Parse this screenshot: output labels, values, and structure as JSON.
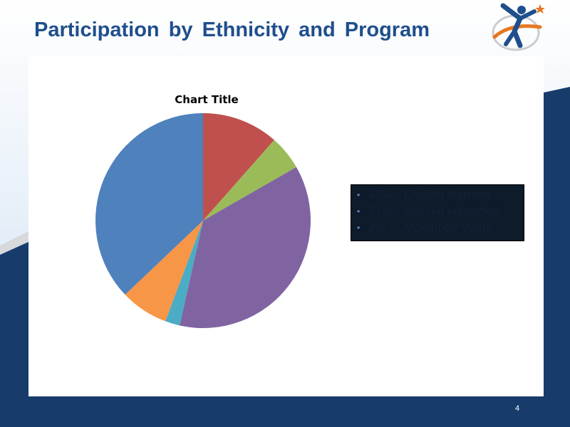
{
  "slide": {
    "title": "Participation by Ethnicity and Program",
    "page_number": "4"
  },
  "logo": {
    "icon": "runner-globe-star-icon"
  },
  "colors": {
    "title": "#1f4e8c",
    "navy_band": "#173c6b",
    "stats_box_bg": "#0d1b2a",
    "stats_text": "#13213a"
  },
  "chart_data": {
    "type": "pie",
    "title": "Chart Title",
    "legend": "none",
    "slices": [
      {
        "value": 11.5,
        "color": "#c0504d"
      },
      {
        "value": 5.2,
        "color": "#9bbb59"
      },
      {
        "value": 36.8,
        "color": "#8064a2"
      },
      {
        "value": 2.2,
        "color": "#4bacc6"
      },
      {
        "value": 7.2,
        "color": "#f79646"
      },
      {
        "value": 37.1,
        "color": "#4f81bd"
      }
    ]
  },
  "stats": {
    "items": [
      {
        "bullet": "•",
        "percent": "47%",
        "label": "English learners"
      },
      {
        "bullet": "•",
        "percent": "21%",
        "label": "Special education"
      },
      {
        "bullet": "•",
        "percent": "2%",
        "label": "McKinney-Vento"
      }
    ]
  }
}
